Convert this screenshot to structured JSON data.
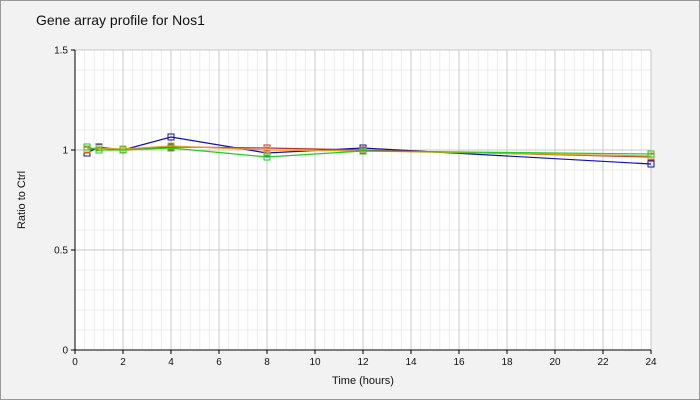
{
  "chart_data": {
    "type": "line",
    "title": "Gene array profile for Nos1",
    "xlabel": "Time (hours)",
    "ylabel": "Ratio to Ctrl",
    "xlim": [
      0,
      24
    ],
    "ylim": [
      0,
      1.5
    ],
    "x_ticks": [
      0,
      2,
      4,
      6,
      8,
      10,
      12,
      14,
      16,
      18,
      20,
      22,
      24
    ],
    "y_ticks": [
      0,
      0.5,
      1,
      1.5
    ],
    "y_tick_labels": [
      "0",
      "0.5",
      "1",
      "1.5"
    ],
    "grid": true,
    "marker": "square",
    "series": [
      {
        "color": "#1010a8",
        "x": [
          0.5,
          1,
          2,
          4,
          8,
          12,
          24
        ],
        "y": [
          0.985,
          1.015,
          1.0,
          1.065,
          0.985,
          1.01,
          0.93
        ]
      },
      {
        "color": "#c03030",
        "x": [
          0.5,
          1,
          2,
          4,
          8,
          12,
          24
        ],
        "y": [
          1.0,
          1.01,
          1.0,
          1.015,
          1.01,
          1.0,
          0.965
        ]
      },
      {
        "color": "#e0a020",
        "x": [
          0.5,
          1,
          2,
          4,
          8,
          12,
          24
        ],
        "y": [
          1.005,
          1.01,
          1.005,
          1.02,
          1.0,
          0.995,
          0.97
        ]
      },
      {
        "color": "#22cc22",
        "x": [
          0.5,
          1,
          2,
          4,
          8,
          12,
          24
        ],
        "y": [
          1.015,
          1.0,
          1.0,
          1.01,
          0.965,
          0.995,
          0.98
        ]
      }
    ]
  }
}
